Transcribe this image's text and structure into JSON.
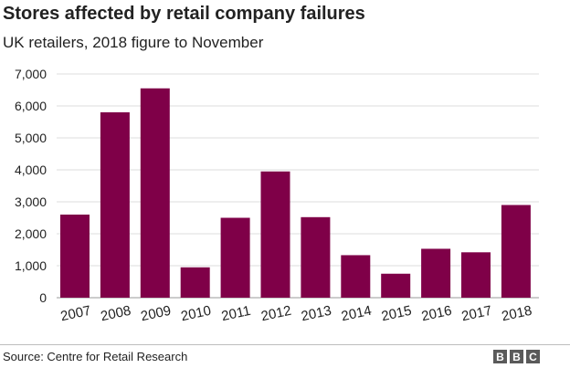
{
  "chart_data": {
    "type": "bar",
    "title": "Stores affected by retail company failures",
    "subtitle": "UK retailers, 2018 figure to November",
    "xlabel": "",
    "ylabel": "",
    "categories": [
      "2007",
      "2008",
      "2009",
      "2010",
      "2011",
      "2012",
      "2013",
      "2014",
      "2015",
      "2016",
      "2017",
      "2018"
    ],
    "values": [
      2600,
      5800,
      6550,
      950,
      2500,
      3950,
      2520,
      1330,
      750,
      1530,
      1420,
      2900
    ],
    "ylim": [
      0,
      7000
    ],
    "yticks": [
      0,
      1000,
      2000,
      3000,
      4000,
      5000,
      6000,
      7000
    ],
    "ytick_labels": [
      "0",
      "1,000",
      "2,000",
      "3,000",
      "4,000",
      "5,000",
      "6,000",
      "7,000"
    ],
    "grid": true,
    "legend": "none",
    "bar_color": "#7f0048"
  },
  "footer": {
    "source": "Source: Centre for Retail Research",
    "logo_letters": [
      "B",
      "B",
      "C"
    ]
  }
}
